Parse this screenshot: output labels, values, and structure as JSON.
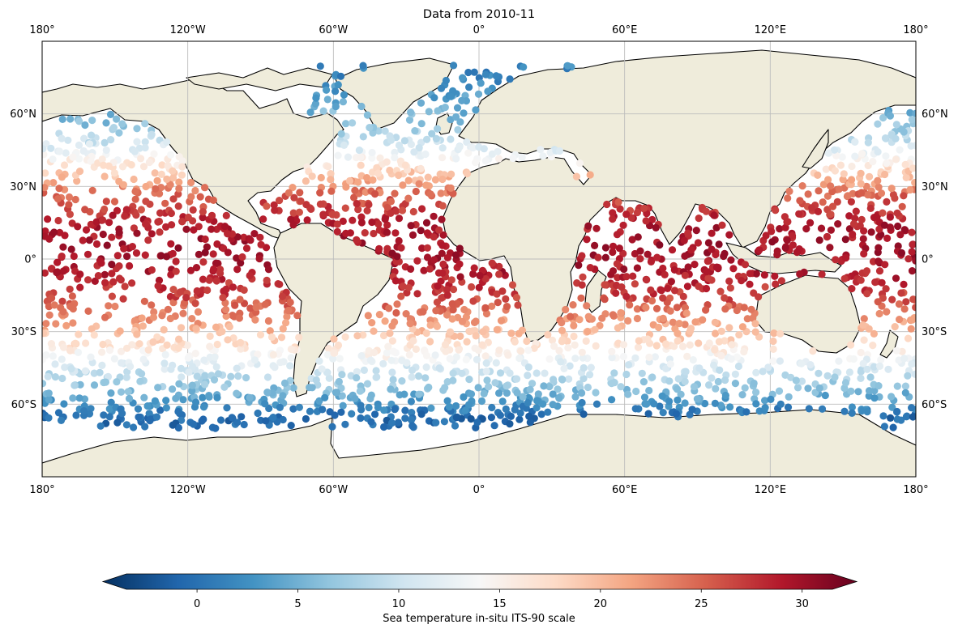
{
  "title": "Data from 2010-11",
  "map": {
    "projection": "PlateCarree",
    "land_color": "#efecdb",
    "ocean_color": "#ffffff",
    "coastline_color": "#000000",
    "grid": true,
    "lon_ticks": [
      {
        "value": -180,
        "label": "180°"
      },
      {
        "value": -120,
        "label": "120°W"
      },
      {
        "value": -60,
        "label": "60°W"
      },
      {
        "value": 0,
        "label": "0°"
      },
      {
        "value": 60,
        "label": "60°E"
      },
      {
        "value": 120,
        "label": "120°E"
      },
      {
        "value": 180,
        "label": "180°"
      }
    ],
    "lat_ticks": [
      {
        "value": 60,
        "label": "60°N"
      },
      {
        "value": 30,
        "label": "30°N"
      },
      {
        "value": 0,
        "label": "0°"
      },
      {
        "value": -30,
        "label": "30°S"
      },
      {
        "value": -60,
        "label": "60°S"
      }
    ]
  },
  "colorbar": {
    "label": "Sea temperature in-situ ITS-90 scale",
    "colormap": "RdBu_r",
    "vmin": -3.5,
    "vmax": 31.5,
    "extend": "both",
    "ticks": [
      0,
      5,
      10,
      15,
      20,
      25,
      30
    ],
    "stops": [
      "#053061",
      "#2166ac",
      "#4393c3",
      "#92c5de",
      "#d1e5f0",
      "#f7f7f7",
      "#fddbc7",
      "#f4a582",
      "#d6604d",
      "#b2182b",
      "#67001f"
    ]
  },
  "chart_data": {
    "type": "scatter",
    "title": "Data from 2010-11",
    "xlabel": "",
    "ylabel": "",
    "xlim": [
      -180,
      180
    ],
    "ylim": [
      -90,
      90
    ],
    "color_variable": "Sea temperature in-situ ITS-90 scale",
    "temperature_by_latitude_band": {
      "lat": [
        75,
        65,
        55,
        45,
        35,
        25,
        15,
        5,
        -5,
        -15,
        -25,
        -35,
        -45,
        -55,
        -65
      ],
      "temp": [
        2.5,
        5,
        7,
        12,
        19,
        25,
        28,
        28.5,
        28,
        26,
        22,
        17,
        11,
        6,
        0.5
      ]
    }
  }
}
